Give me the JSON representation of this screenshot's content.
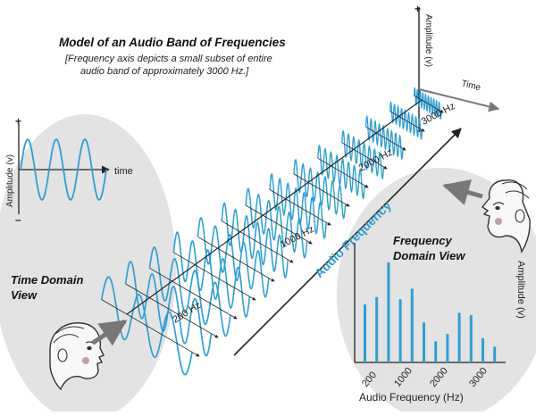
{
  "title": "Model of an Audio Band of Frequencies",
  "note": {
    "line1": "[Frequency axis depicts a small subset of entire",
    "line2": "audio band of approximately 3000 Hz.]"
  },
  "corner_axes": {
    "amplitude_label": "Amplitude (v)",
    "time_label": "Time",
    "plus": "+",
    "minus": "–"
  },
  "freq_axis": {
    "label": "Audio Frequency",
    "ticks": [
      "200 Hz",
      "1000 Hz",
      "2000 Hz",
      "3000 Hz"
    ]
  },
  "time_domain": {
    "title_line1": "Time Domain",
    "title_line2": "View",
    "amplitude_label": "Amplitude (v)",
    "time_label": "time",
    "plus": "+",
    "minus": "–"
  },
  "frequency_domain": {
    "title_line1": "Frequency",
    "title_line2": "Domain View",
    "ylabel": "Amplitude (v)",
    "xlabel": "Audio Frequency (Hz)",
    "ticks": [
      "200",
      "1000",
      "2000",
      "3000"
    ]
  },
  "colors": {
    "wave": "#2a9fd6",
    "bubble": "#e3e3e3",
    "axis": "#222222",
    "arrow_gray": "#777777"
  },
  "chart_data": {
    "type": "bar",
    "values": [
      0.55,
      0.62,
      0.95,
      0.6,
      0.7,
      0.38,
      0.2,
      0.27,
      0.47,
      0.45,
      0.23,
      0.15
    ]
  }
}
